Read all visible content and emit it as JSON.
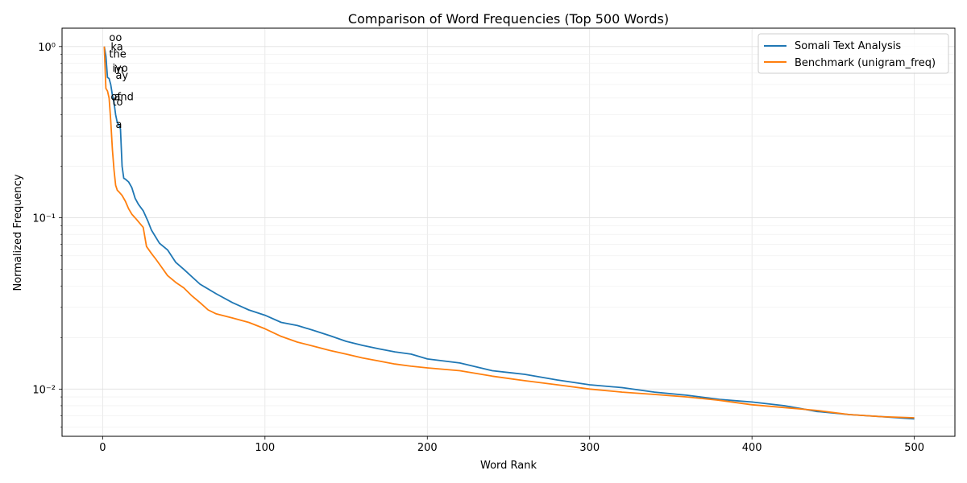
{
  "chart_data": {
    "type": "line",
    "title": "Comparison of Word Frequencies (Top 500 Words)",
    "xlabel": "Word Rank",
    "ylabel": "Normalized Frequency",
    "yscale": "log",
    "grid": true,
    "legend_position": "top-right",
    "xlim": [
      -25,
      525
    ],
    "ylim": [
      0.0053,
      1.28
    ],
    "xticks": [
      0,
      100,
      200,
      300,
      400,
      500
    ],
    "xtick_labels": [
      "0",
      "100",
      "200",
      "300",
      "400",
      "500"
    ],
    "yticks": [
      0.01,
      0.1,
      1.0
    ],
    "ytick_labels": [
      "10⁻²",
      "10⁻¹",
      "10⁰"
    ],
    "series": [
      {
        "name": "Somali Text Analysis",
        "color": "#1f77b4",
        "x": [
          1,
          2,
          3,
          4,
          5,
          6,
          7,
          8,
          9,
          10,
          11,
          12,
          13,
          14,
          15,
          16,
          18,
          20,
          22,
          25,
          28,
          30,
          35,
          40,
          45,
          50,
          60,
          70,
          80,
          90,
          100,
          110,
          120,
          130,
          140,
          150,
          160,
          170,
          180,
          190,
          200,
          220,
          240,
          260,
          280,
          300,
          320,
          340,
          360,
          380,
          400,
          420,
          430,
          440,
          460,
          480,
          500
        ],
        "y": [
          1.0,
          0.88,
          0.66,
          0.65,
          0.6,
          0.52,
          0.47,
          0.4,
          0.36,
          0.35,
          0.33,
          0.2,
          0.17,
          0.168,
          0.165,
          0.162,
          0.15,
          0.13,
          0.12,
          0.11,
          0.095,
          0.085,
          0.071,
          0.065,
          0.055,
          0.05,
          0.041,
          0.036,
          0.032,
          0.029,
          0.027,
          0.0245,
          0.0235,
          0.022,
          0.0205,
          0.019,
          0.018,
          0.0172,
          0.0165,
          0.016,
          0.015,
          0.0142,
          0.0128,
          0.0122,
          0.0113,
          0.0106,
          0.0102,
          0.0096,
          0.0092,
          0.0087,
          0.0084,
          0.008,
          0.0077,
          0.0074,
          0.0071,
          0.0069,
          0.0067
        ]
      },
      {
        "name": "Benchmark (unigram_freq)",
        "color": "#ff7f0e",
        "x": [
          1,
          2,
          3,
          4,
          5,
          6,
          7,
          8,
          9,
          10,
          12,
          14,
          16,
          18,
          20,
          22,
          25,
          27,
          30,
          33,
          36,
          40,
          45,
          50,
          55,
          60,
          65,
          70,
          80,
          90,
          100,
          110,
          120,
          130,
          140,
          150,
          160,
          170,
          180,
          190,
          200,
          220,
          240,
          260,
          280,
          300,
          320,
          340,
          360,
          380,
          400,
          420,
          440,
          460,
          480,
          500
        ],
        "y": [
          1.0,
          0.57,
          0.55,
          0.5,
          0.37,
          0.25,
          0.19,
          0.155,
          0.145,
          0.142,
          0.135,
          0.125,
          0.113,
          0.105,
          0.1,
          0.095,
          0.088,
          0.068,
          0.062,
          0.057,
          0.052,
          0.046,
          0.042,
          0.039,
          0.035,
          0.032,
          0.029,
          0.0275,
          0.026,
          0.0245,
          0.0225,
          0.0203,
          0.0188,
          0.0178,
          0.0168,
          0.016,
          0.0152,
          0.0146,
          0.014,
          0.0136,
          0.0133,
          0.0128,
          0.0119,
          0.0112,
          0.0106,
          0.01,
          0.0096,
          0.0093,
          0.009,
          0.0086,
          0.0081,
          0.0078,
          0.0075,
          0.0071,
          0.0069,
          0.0068
        ]
      }
    ],
    "annotations": [
      {
        "text": "oo",
        "x": 4,
        "y": 1.0
      },
      {
        "text": "ka",
        "x": 5,
        "y": 0.88
      },
      {
        "text": "the",
        "x": 4,
        "y": 0.8
      },
      {
        "text": "iyo",
        "x": 6,
        "y": 0.66
      },
      {
        "text": "in",
        "x": 7,
        "y": 0.65
      },
      {
        "text": "ay",
        "x": 8,
        "y": 0.6
      },
      {
        "text": "of",
        "x": 5,
        "y": 0.45
      },
      {
        "text": "and",
        "x": 7,
        "y": 0.45
      },
      {
        "text": "to",
        "x": 6,
        "y": 0.42
      },
      {
        "text": "a",
        "x": 8,
        "y": 0.31
      }
    ]
  }
}
